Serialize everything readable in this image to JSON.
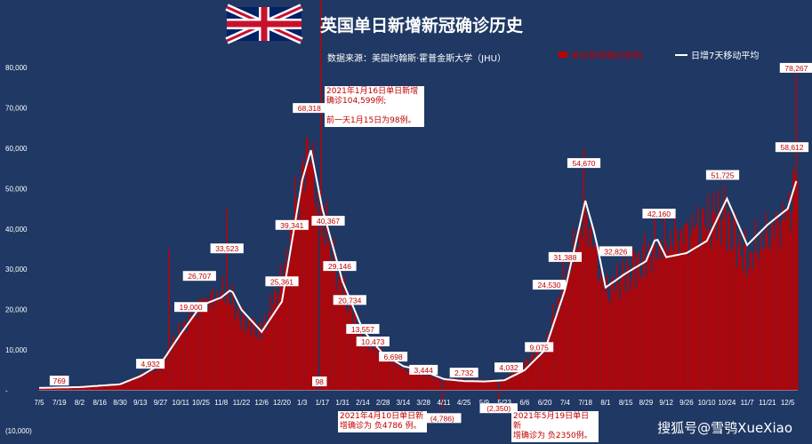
{
  "header": {
    "title": "英国单日新增新冠确诊历史",
    "source": "数据来源：美国约翰斯·霍普金斯大学（JHU）",
    "flag_icon": "uk-flag-icon"
  },
  "legend": {
    "bar_label": "单日新增确诊病例",
    "line_label": "日增7天移动平均"
  },
  "notes": {
    "jan16": "2021年1月16日单日新增\n确诊104,599例;\n\n前一天1月15日为98例。",
    "apr10": "2021年4月10日单日新\n增确诊为 负4786 例。",
    "may19": "2021年5月19日单日新\n增确诊为 负2350例。"
  },
  "watermark": "搜狐号@雪鸮XueXiao",
  "colors": {
    "background": "#1f3864",
    "bar": "#c00000",
    "line": "#ffffff",
    "label_box": "#ffffff",
    "label_text": "#c00000"
  },
  "chart_data": {
    "type": "bar",
    "title": "英国单日新增新冠确诊历史",
    "ylim": [
      -10000,
      80000
    ],
    "yticks": [
      {
        "value": -10000,
        "label": "(10,000)"
      },
      {
        "value": 0,
        "label": "-"
      },
      {
        "value": 10000,
        "label": "10,000"
      },
      {
        "value": 20000,
        "label": "20,000"
      },
      {
        "value": 30000,
        "label": "30,000"
      },
      {
        "value": 40000,
        "label": "40,000"
      },
      {
        "value": 50000,
        "label": "50,000"
      },
      {
        "value": 60000,
        "label": "60,000"
      },
      {
        "value": 70000,
        "label": "70,000"
      },
      {
        "value": 80000,
        "label": "80,000"
      }
    ],
    "x_start": "2020-07-05",
    "x_end": "2021-12-12",
    "xticks": [
      "7/5",
      "7/19",
      "8/2",
      "8/16",
      "8/30",
      "9/13",
      "9/27",
      "10/11",
      "10/25",
      "11/8",
      "11/22",
      "12/6",
      "12/20",
      "1/3",
      "1/17",
      "1/31",
      "2/14",
      "2/28",
      "3/14",
      "3/28",
      "4/11",
      "4/25",
      "5/9",
      "5/23",
      "6/6",
      "6/20",
      "7/4",
      "7/18",
      "8/1",
      "8/15",
      "8/29",
      "9/12",
      "9/26",
      "10/10",
      "10/24",
      "11/7",
      "11/21",
      "12/5"
    ],
    "moving_average": [
      {
        "date": "2020-07-05",
        "value": 600
      },
      {
        "date": "2020-08-02",
        "value": 800
      },
      {
        "date": "2020-08-30",
        "value": 1500
      },
      {
        "date": "2020-09-13",
        "value": 3500
      },
      {
        "date": "2020-09-27",
        "value": 6500
      },
      {
        "date": "2020-10-11",
        "value": 14000
      },
      {
        "date": "2020-10-25",
        "value": 21000
      },
      {
        "date": "2020-11-08",
        "value": 23000
      },
      {
        "date": "2020-11-15",
        "value": 25000
      },
      {
        "date": "2020-11-22",
        "value": 20000
      },
      {
        "date": "2020-12-06",
        "value": 14500
      },
      {
        "date": "2020-12-20",
        "value": 22000
      },
      {
        "date": "2021-01-03",
        "value": 52000
      },
      {
        "date": "2021-01-09",
        "value": 59500
      },
      {
        "date": "2021-01-17",
        "value": 45000
      },
      {
        "date": "2021-01-31",
        "value": 27000
      },
      {
        "date": "2021-02-14",
        "value": 15000
      },
      {
        "date": "2021-02-28",
        "value": 9000
      },
      {
        "date": "2021-03-14",
        "value": 6000
      },
      {
        "date": "2021-03-28",
        "value": 4800
      },
      {
        "date": "2021-04-11",
        "value": 2800
      },
      {
        "date": "2021-04-25",
        "value": 2300
      },
      {
        "date": "2021-05-09",
        "value": 2200
      },
      {
        "date": "2021-05-23",
        "value": 2500
      },
      {
        "date": "2021-06-06",
        "value": 5000
      },
      {
        "date": "2021-06-20",
        "value": 10000
      },
      {
        "date": "2021-07-04",
        "value": 25000
      },
      {
        "date": "2021-07-18",
        "value": 47000
      },
      {
        "date": "2021-07-25",
        "value": 38000
      },
      {
        "date": "2021-08-01",
        "value": 25500
      },
      {
        "date": "2021-08-15",
        "value": 29000
      },
      {
        "date": "2021-08-29",
        "value": 32000
      },
      {
        "date": "2021-09-05",
        "value": 38000
      },
      {
        "date": "2021-09-12",
        "value": 33000
      },
      {
        "date": "2021-09-26",
        "value": 34000
      },
      {
        "date": "2021-10-10",
        "value": 37000
      },
      {
        "date": "2021-10-24",
        "value": 47500
      },
      {
        "date": "2021-11-07",
        "value": 36000
      },
      {
        "date": "2021-11-21",
        "value": 41000
      },
      {
        "date": "2021-12-05",
        "value": 45000
      },
      {
        "date": "2021-12-12",
        "value": 53000
      }
    ],
    "daily_anchors": [
      {
        "date": "2020-07-05",
        "value": 500
      },
      {
        "date": "2020-07-19",
        "value": 769
      },
      {
        "date": "2020-08-30",
        "value": 1500
      },
      {
        "date": "2020-09-27",
        "value": 6000
      },
      {
        "date": "2020-10-05",
        "value": 12000
      },
      {
        "date": "2020-10-25",
        "value": 22000
      },
      {
        "date": "2020-11-12",
        "value": 25000
      },
      {
        "date": "2020-11-22",
        "value": 18000
      },
      {
        "date": "2020-12-06",
        "value": 15000
      },
      {
        "date": "2020-12-20",
        "value": 28000
      },
      {
        "date": "2021-01-08",
        "value": 62000
      },
      {
        "date": "2021-01-17",
        "value": 40000
      },
      {
        "date": "2021-02-14",
        "value": 13000
      },
      {
        "date": "2021-03-14",
        "value": 5500
      },
      {
        "date": "2021-04-11",
        "value": 2800
      },
      {
        "date": "2021-05-23",
        "value": 2500
      },
      {
        "date": "2021-06-20",
        "value": 11000
      },
      {
        "date": "2021-07-18",
        "value": 45000
      },
      {
        "date": "2021-08-01",
        "value": 25000
      },
      {
        "date": "2021-09-05",
        "value": 36000
      },
      {
        "date": "2021-10-21",
        "value": 45000
      },
      {
        "date": "2021-11-07",
        "value": 33000
      },
      {
        "date": "2021-12-05",
        "value": 45000
      },
      {
        "date": "2021-12-12",
        "value": 55000
      }
    ],
    "spikes": [
      {
        "date": "2020-10-03",
        "value": 35000
      },
      {
        "date": "2020-11-12",
        "value": 45000
      },
      {
        "date": "2020-12-29",
        "value": 53000
      },
      {
        "date": "2021-01-06",
        "value": 63000
      },
      {
        "date": "2021-01-15",
        "value": 98
      },
      {
        "date": "2021-01-16",
        "value": 104599
      },
      {
        "date": "2021-01-20",
        "value": 47000
      },
      {
        "date": "2021-04-10",
        "value": -4786
      },
      {
        "date": "2021-05-19",
        "value": -2350
      },
      {
        "date": "2021-07-17",
        "value": 60000
      },
      {
        "date": "2021-12-11",
        "value": 78267
      }
    ],
    "data_labels": [
      {
        "date": "2020-07-19",
        "value": 769,
        "label": "769"
      },
      {
        "date": "2020-09-20",
        "value": 4932,
        "label": "4,932"
      },
      {
        "date": "2020-10-18",
        "value": 19000,
        "label": "19,000"
      },
      {
        "date": "2020-10-24",
        "value": 26707,
        "label": "26,707"
      },
      {
        "date": "2020-11-12",
        "value": 33523,
        "label": "33,523"
      },
      {
        "date": "2020-12-20",
        "value": 25361,
        "label": "25,361"
      },
      {
        "date": "2020-12-27",
        "value": 39341,
        "label": "39,341"
      },
      {
        "date": "2021-01-08",
        "value": 68318,
        "label": "68,318"
      },
      {
        "date": "2021-01-15",
        "value": 98,
        "label": "98"
      },
      {
        "date": "2021-01-21",
        "value": 40367,
        "label": "40,367"
      },
      {
        "date": "2021-01-29",
        "value": 29146,
        "label": "29,146"
      },
      {
        "date": "2021-02-05",
        "value": 20734,
        "label": "20,734"
      },
      {
        "date": "2021-02-14",
        "value": 13557,
        "label": "13,557"
      },
      {
        "date": "2021-02-21",
        "value": 10473,
        "label": "10,473"
      },
      {
        "date": "2021-03-07",
        "value": 6698,
        "label": "6,698"
      },
      {
        "date": "2021-03-28",
        "value": 3444,
        "label": "3,444"
      },
      {
        "date": "2021-04-10",
        "value": -4786,
        "label": "(4,786)"
      },
      {
        "date": "2021-04-25",
        "value": 2732,
        "label": "2,732"
      },
      {
        "date": "2021-05-19",
        "value": -2350,
        "label": "(2,350)"
      },
      {
        "date": "2021-05-26",
        "value": 4032,
        "label": "4,032"
      },
      {
        "date": "2021-06-16",
        "value": 9075,
        "label": "9,075"
      },
      {
        "date": "2021-06-23",
        "value": 24530,
        "label": "24,530"
      },
      {
        "date": "2021-07-04",
        "value": 31388,
        "label": "31,388"
      },
      {
        "date": "2021-07-17",
        "value": 54670,
        "label": "54,670"
      },
      {
        "date": "2021-08-08",
        "value": 32826,
        "label": "32,826"
      },
      {
        "date": "2021-09-07",
        "value": 42160,
        "label": "42,160"
      },
      {
        "date": "2021-10-21",
        "value": 51725,
        "label": "51,725"
      },
      {
        "date": "2021-12-08",
        "value": 58612,
        "label": "58,612"
      },
      {
        "date": "2021-12-11",
        "value": 78267,
        "label": "78,267"
      }
    ]
  }
}
